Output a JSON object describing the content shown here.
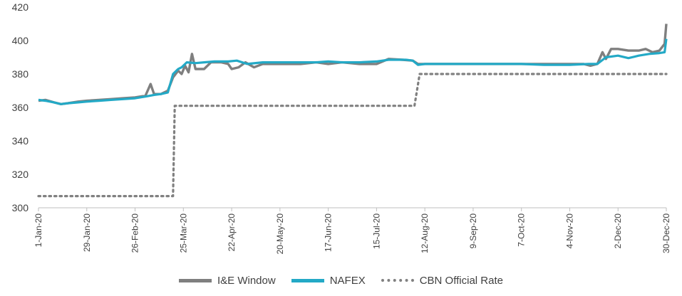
{
  "chart_data": {
    "type": "line",
    "title": "",
    "xlabel": "",
    "ylabel": "",
    "ylim": [
      300,
      420
    ],
    "yticks": [
      "300",
      "320",
      "340",
      "360",
      "380",
      "400",
      "420"
    ],
    "xticks": [
      {
        "label": "1-Jan-20",
        "date": "2020-01-01"
      },
      {
        "label": "29-Jan-20",
        "date": "2020-01-29"
      },
      {
        "label": "26-Feb-20",
        "date": "2020-02-26"
      },
      {
        "label": "25-Mar-20",
        "date": "2020-03-25"
      },
      {
        "label": "22-Apr-20",
        "date": "2020-04-22"
      },
      {
        "label": "20-May-20",
        "date": "2020-05-20"
      },
      {
        "label": "17-Jun-20",
        "date": "2020-06-17"
      },
      {
        "label": "15-Jul-20",
        "date": "2020-07-15"
      },
      {
        "label": "12-Aug-20",
        "date": "2020-08-12"
      },
      {
        "label": "9-Sep-20",
        "date": "2020-09-09"
      },
      {
        "label": "7-Oct-20",
        "date": "2020-10-07"
      },
      {
        "label": "4-Nov-20",
        "date": "2020-11-04"
      },
      {
        "label": "2-Dec-20",
        "date": "2020-12-02"
      },
      {
        "label": "30-Dec-20",
        "date": "2020-12-30"
      }
    ],
    "grid": false,
    "legend_position": "bottom",
    "series": [
      {
        "name": "I&E Window",
        "color": "#7f7f7f",
        "style": "solid",
        "points": [
          [
            "2020-01-01",
            364
          ],
          [
            "2020-01-05",
            364.5
          ],
          [
            "2020-01-10",
            363
          ],
          [
            "2020-01-14",
            362
          ],
          [
            "2020-01-18",
            362.5
          ],
          [
            "2020-01-24",
            363.5
          ],
          [
            "2020-01-29",
            364
          ],
          [
            "2020-02-05",
            364.5
          ],
          [
            "2020-02-12",
            365
          ],
          [
            "2020-02-19",
            365.5
          ],
          [
            "2020-02-26",
            366
          ],
          [
            "2020-03-03",
            367
          ],
          [
            "2020-03-06",
            374
          ],
          [
            "2020-03-08",
            368
          ],
          [
            "2020-03-12",
            368
          ],
          [
            "2020-03-16",
            370
          ],
          [
            "2020-03-19",
            378
          ],
          [
            "2020-03-22",
            382
          ],
          [
            "2020-03-24",
            380
          ],
          [
            "2020-03-26",
            385
          ],
          [
            "2020-03-28",
            381
          ],
          [
            "2020-03-30",
            392
          ],
          [
            "2020-04-01",
            383
          ],
          [
            "2020-04-06",
            383
          ],
          [
            "2020-04-10",
            387
          ],
          [
            "2020-04-16",
            387
          ],
          [
            "2020-04-20",
            386
          ],
          [
            "2020-04-22",
            383
          ],
          [
            "2020-04-26",
            384
          ],
          [
            "2020-04-30",
            387
          ],
          [
            "2020-05-05",
            384
          ],
          [
            "2020-05-10",
            386
          ],
          [
            "2020-05-20",
            386
          ],
          [
            "2020-06-01",
            386
          ],
          [
            "2020-06-10",
            387
          ],
          [
            "2020-06-17",
            386
          ],
          [
            "2020-06-25",
            387
          ],
          [
            "2020-07-05",
            386
          ],
          [
            "2020-07-15",
            386
          ],
          [
            "2020-07-22",
            389
          ],
          [
            "2020-07-30",
            388.5
          ],
          [
            "2020-08-05",
            388
          ],
          [
            "2020-08-08",
            386
          ],
          [
            "2020-08-12",
            386
          ],
          [
            "2020-08-20",
            386
          ],
          [
            "2020-09-01",
            386
          ],
          [
            "2020-09-09",
            386
          ],
          [
            "2020-09-20",
            386
          ],
          [
            "2020-10-07",
            386
          ],
          [
            "2020-10-20",
            386
          ],
          [
            "2020-11-04",
            386
          ],
          [
            "2020-11-12",
            386
          ],
          [
            "2020-11-16",
            385
          ],
          [
            "2020-11-20",
            386
          ],
          [
            "2020-11-23",
            393
          ],
          [
            "2020-11-25",
            389
          ],
          [
            "2020-11-28",
            395
          ],
          [
            "2020-12-02",
            395
          ],
          [
            "2020-12-08",
            394
          ],
          [
            "2020-12-14",
            394
          ],
          [
            "2020-12-18",
            395
          ],
          [
            "2020-12-22",
            393
          ],
          [
            "2020-12-26",
            394
          ],
          [
            "2020-12-29",
            398
          ],
          [
            "2020-12-30",
            410
          ]
        ]
      },
      {
        "name": "NAFEX",
        "color": "#23a9c6",
        "style": "solid",
        "points": [
          [
            "2020-01-01",
            364.5
          ],
          [
            "2020-01-05",
            364
          ],
          [
            "2020-01-10",
            363
          ],
          [
            "2020-01-14",
            362
          ],
          [
            "2020-01-18",
            362.5
          ],
          [
            "2020-01-24",
            363
          ],
          [
            "2020-01-29",
            363.5
          ],
          [
            "2020-02-05",
            364
          ],
          [
            "2020-02-12",
            364.5
          ],
          [
            "2020-02-19",
            365
          ],
          [
            "2020-02-26",
            365.5
          ],
          [
            "2020-03-03",
            366.5
          ],
          [
            "2020-03-08",
            367.5
          ],
          [
            "2020-03-12",
            368
          ],
          [
            "2020-03-16",
            369
          ],
          [
            "2020-03-19",
            380
          ],
          [
            "2020-03-22",
            383
          ],
          [
            "2020-03-24",
            384
          ],
          [
            "2020-03-27",
            387
          ],
          [
            "2020-04-01",
            386.5
          ],
          [
            "2020-04-06",
            387
          ],
          [
            "2020-04-12",
            387.5
          ],
          [
            "2020-04-20",
            387.5
          ],
          [
            "2020-04-25",
            388
          ],
          [
            "2020-05-01",
            386
          ],
          [
            "2020-05-10",
            387
          ],
          [
            "2020-05-20",
            387
          ],
          [
            "2020-06-01",
            387
          ],
          [
            "2020-06-10",
            387
          ],
          [
            "2020-06-17",
            387.5
          ],
          [
            "2020-06-25",
            387
          ],
          [
            "2020-07-05",
            387
          ],
          [
            "2020-07-15",
            387.5
          ],
          [
            "2020-07-22",
            388.5
          ],
          [
            "2020-08-01",
            388.5
          ],
          [
            "2020-08-05",
            388
          ],
          [
            "2020-08-08",
            385.5
          ],
          [
            "2020-08-12",
            386
          ],
          [
            "2020-08-20",
            386
          ],
          [
            "2020-09-01",
            386
          ],
          [
            "2020-09-09",
            386
          ],
          [
            "2020-09-20",
            386
          ],
          [
            "2020-10-07",
            386
          ],
          [
            "2020-10-20",
            385.5
          ],
          [
            "2020-11-04",
            385.5
          ],
          [
            "2020-11-15",
            386
          ],
          [
            "2020-11-20",
            386
          ],
          [
            "2020-11-25",
            390
          ],
          [
            "2020-12-02",
            391
          ],
          [
            "2020-12-08",
            389.5
          ],
          [
            "2020-12-14",
            391
          ],
          [
            "2020-12-20",
            392
          ],
          [
            "2020-12-26",
            392.5
          ],
          [
            "2020-12-29",
            393
          ],
          [
            "2020-12-30",
            401
          ]
        ]
      },
      {
        "name": "CBN Official Rate",
        "color": "#808080",
        "style": "dotted",
        "points": [
          [
            "2020-01-01",
            307
          ],
          [
            "2020-03-19",
            307
          ],
          [
            "2020-03-20",
            361
          ],
          [
            "2020-08-06",
            361
          ],
          [
            "2020-08-09",
            380
          ],
          [
            "2020-12-30",
            380
          ]
        ]
      }
    ]
  }
}
